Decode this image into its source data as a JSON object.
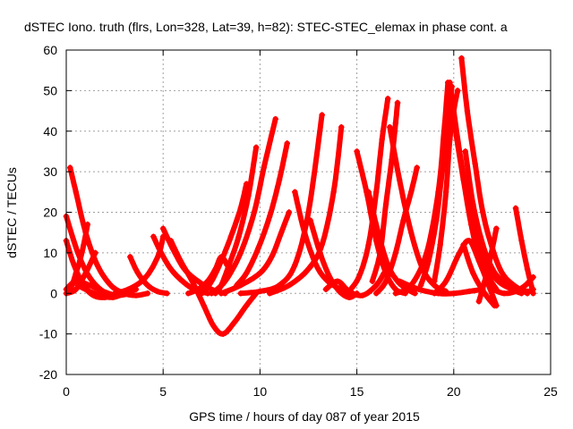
{
  "chart_data": {
    "type": "line",
    "title": "dSTEC Iono. truth (flrs, Lon=328, Lat=39, h=82): STEC-STEC_elemax in phase cont. a",
    "xlabel": "GPS time / hours of day 087 of year 2015",
    "ylabel": "dSTEC  / TECUs",
    "xlim": [
      0,
      25
    ],
    "ylim": [
      -20,
      60
    ],
    "xticks": [
      "0",
      "5",
      "10",
      "15",
      "20",
      "25"
    ],
    "yticks": [
      "-20",
      "-10",
      "0",
      "10",
      "20",
      "30",
      "40",
      "50",
      "60"
    ],
    "grid": true,
    "marker": "plus",
    "color": "#ff0000",
    "series": [
      {
        "x": [
          0.0,
          0.4,
          0.9,
          1.4,
          2.0,
          2.6
        ],
        "y": [
          13,
          7,
          2,
          -0.5,
          -1,
          0
        ]
      },
      {
        "x": [
          0.0,
          0.5,
          1.0,
          1.5
        ],
        "y": [
          0,
          1,
          5,
          10
        ]
      },
      {
        "x": [
          0.0,
          0.6,
          1.2,
          1.9,
          2.6
        ],
        "y": [
          19,
          10,
          4,
          0.5,
          -0.5
        ]
      },
      {
        "x": [
          0.2,
          0.5,
          1.0,
          1.6,
          2.3,
          3.0,
          3.6,
          4.2
        ],
        "y": [
          31,
          25,
          15,
          7,
          2,
          0,
          -0.5,
          0
        ]
      },
      {
        "x": [
          0.0,
          0.5,
          1.2,
          1.9,
          2.6,
          3.3
        ],
        "y": [
          1,
          3,
          2,
          0.5,
          -0.5,
          0
        ]
      },
      {
        "x": [
          1.1,
          0.9,
          0.7,
          0.5,
          0.3,
          0.1
        ],
        "y": [
          17,
          12,
          8,
          5,
          2,
          0.5
        ]
      },
      {
        "x": [
          0.6,
          1.2,
          1.8,
          2.4,
          3.0,
          3.6
        ],
        "y": [
          2,
          0.5,
          -0.5,
          -1,
          0,
          1
        ]
      },
      {
        "x": [
          3.3,
          3.7,
          4.2,
          4.7,
          5.2
        ],
        "y": [
          9,
          5,
          2,
          0.5,
          0
        ]
      },
      {
        "x": [
          2.5,
          3.2,
          3.9,
          4.4,
          4.8,
          5.0
        ],
        "y": [
          0,
          1,
          3,
          6,
          10,
          14
        ]
      },
      {
        "x": [
          5.0,
          5.5,
          6.1,
          6.8,
          7.5,
          8.2
        ],
        "y": [
          16,
          11,
          6,
          3,
          1,
          0
        ]
      },
      {
        "x": [
          4.5,
          4.9,
          5.4,
          6.0,
          6.6,
          7.3
        ],
        "y": [
          14,
          10,
          6,
          3,
          1,
          0
        ]
      },
      {
        "x": [
          5.4,
          5.9,
          6.5,
          7.1,
          7.6,
          8.1,
          8.7,
          9.3,
          9.8
        ],
        "y": [
          13,
          8,
          3,
          -3,
          -8,
          -10,
          -7,
          -3,
          0
        ]
      },
      {
        "x": [
          6.3,
          6.8,
          7.3,
          7.7,
          8.0,
          8.3
        ],
        "y": [
          0,
          1,
          3,
          6,
          9,
          7
        ]
      },
      {
        "x": [
          7.7,
          8.0,
          8.4,
          8.9,
          9.4,
          9.8
        ],
        "y": [
          0,
          2,
          7,
          14,
          24,
          36
        ]
      },
      {
        "x": [
          7.0,
          7.5,
          8.0,
          8.5,
          9.0,
          9.3
        ],
        "y": [
          0,
          3,
          8,
          14,
          21,
          27
        ]
      },
      {
        "x": [
          7.5,
          8.2,
          9.0,
          9.7,
          10.2,
          10.8
        ],
        "y": [
          0,
          3,
          10,
          20,
          31,
          43
        ]
      },
      {
        "x": [
          8.8,
          9.3,
          9.9,
          10.5,
          11.0,
          11.4
        ],
        "y": [
          2,
          5,
          11,
          19,
          28,
          37
        ]
      },
      {
        "x": [
          8.0,
          9.0,
          10.0,
          10.6,
          11.1,
          11.5
        ],
        "y": [
          0,
          2,
          5,
          9,
          15,
          20
        ]
      },
      {
        "x": [
          9.0,
          10.0,
          11.0,
          11.8,
          12.5,
          13.2
        ],
        "y": [
          0,
          0.5,
          2,
          7,
          20,
          44
        ]
      },
      {
        "x": [
          11.8,
          12.3,
          12.9,
          13.5,
          14.2,
          14.8
        ],
        "y": [
          25,
          15,
          7,
          3,
          1,
          0
        ]
      },
      {
        "x": [
          10.5,
          11.5,
          12.5,
          13.2,
          13.8,
          14.2
        ],
        "y": [
          0,
          2,
          6,
          12,
          25,
          41
        ]
      },
      {
        "x": [
          12.6,
          13.1,
          13.6,
          14.1,
          14.6,
          15.0
        ],
        "y": [
          18,
          10,
          4,
          0.5,
          -1,
          0
        ]
      },
      {
        "x": [
          13.4,
          14.0,
          14.6,
          15.3,
          16.0,
          16.4
        ],
        "y": [
          1,
          3,
          0.5,
          -0.5,
          2,
          5
        ]
      },
      {
        "x": [
          15.0,
          15.5,
          16.0,
          16.5,
          17.0,
          17.5
        ],
        "y": [
          35,
          25,
          13,
          5,
          1,
          0
        ]
      },
      {
        "x": [
          15.6,
          16.1,
          16.6,
          17.1,
          17.6,
          18.0
        ],
        "y": [
          25,
          15,
          7,
          3,
          1,
          0
        ]
      },
      {
        "x": [
          14.5,
          15.1,
          15.6,
          16.0,
          16.3,
          16.6
        ],
        "y": [
          0,
          4,
          12,
          25,
          38,
          48
        ]
      },
      {
        "x": [
          15.8,
          16.2,
          16.5,
          16.8,
          17.0,
          17.1
        ],
        "y": [
          3,
          10,
          22,
          33,
          42,
          47
        ]
      },
      {
        "x": [
          16.7,
          17.2,
          17.8,
          18.4,
          19.0,
          19.6
        ],
        "y": [
          41,
          28,
          15,
          6,
          2,
          0.5
        ]
      },
      {
        "x": [
          16.0,
          16.5,
          17.0,
          17.4,
          17.8,
          18.1
        ],
        "y": [
          0,
          3,
          10,
          18,
          25,
          31
        ]
      },
      {
        "x": [
          17.0,
          17.8,
          18.6,
          19.2,
          19.5,
          19.7
        ],
        "y": [
          0,
          2,
          10,
          25,
          40,
          52
        ]
      },
      {
        "x": [
          18.3,
          18.7,
          19.1,
          19.4,
          19.7,
          19.9
        ],
        "y": [
          2,
          8,
          18,
          30,
          42,
          51
        ]
      },
      {
        "x": [
          19.0,
          19.3,
          19.6,
          19.8,
          20.0,
          20.2
        ],
        "y": [
          3,
          12,
          25,
          38,
          45,
          50
        ]
      },
      {
        "x": [
          19.8,
          20.1,
          20.5,
          20.9,
          21.3,
          21.8,
          22.2
        ],
        "y": [
          52,
          40,
          28,
          17,
          9,
          4,
          1
        ]
      },
      {
        "x": [
          20.0,
          20.3,
          20.7,
          21.2,
          21.7,
          22.3,
          23.0
        ],
        "y": [
          45,
          35,
          24,
          14,
          7,
          3,
          1
        ]
      },
      {
        "x": [
          20.4,
          20.7,
          21.1,
          21.5,
          22.0,
          22.5,
          23.1,
          23.8
        ],
        "y": [
          58,
          45,
          32,
          20,
          11,
          5,
          2,
          0
        ]
      },
      {
        "x": [
          20.6,
          21.0,
          21.5,
          22.0,
          22.5,
          23.0,
          23.5
        ],
        "y": [
          35,
          22,
          12,
          6,
          3,
          1,
          0
        ]
      },
      {
        "x": [
          19.0,
          19.6,
          20.3,
          20.8,
          21.3,
          21.8,
          22.2
        ],
        "y": [
          0,
          3,
          10,
          13,
          8,
          2,
          -3
        ]
      },
      {
        "x": [
          20.5,
          21.0,
          21.6,
          22.1
        ],
        "y": [
          12,
          5,
          0,
          -3
        ]
      },
      {
        "x": [
          17.2,
          18.2,
          19.2,
          20.0,
          20.8,
          21.5
        ],
        "y": [
          3,
          1,
          0,
          0,
          0.5,
          1
        ]
      },
      {
        "x": [
          21.3,
          21.6,
          21.9,
          22.2
        ],
        "y": [
          -2,
          3,
          9,
          16
        ]
      },
      {
        "x": [
          22.0,
          22.6,
          23.2,
          23.7,
          24.1
        ],
        "y": [
          1,
          0,
          0.5,
          2,
          4
        ]
      },
      {
        "x": [
          23.2,
          23.5,
          23.8,
          24.0,
          24.1
        ],
        "y": [
          21,
          13,
          6,
          2,
          0
        ]
      },
      {
        "x": [
          22.8,
          23.4,
          23.9,
          24.1
        ],
        "y": [
          3,
          1,
          0.5,
          1
        ]
      }
    ]
  }
}
